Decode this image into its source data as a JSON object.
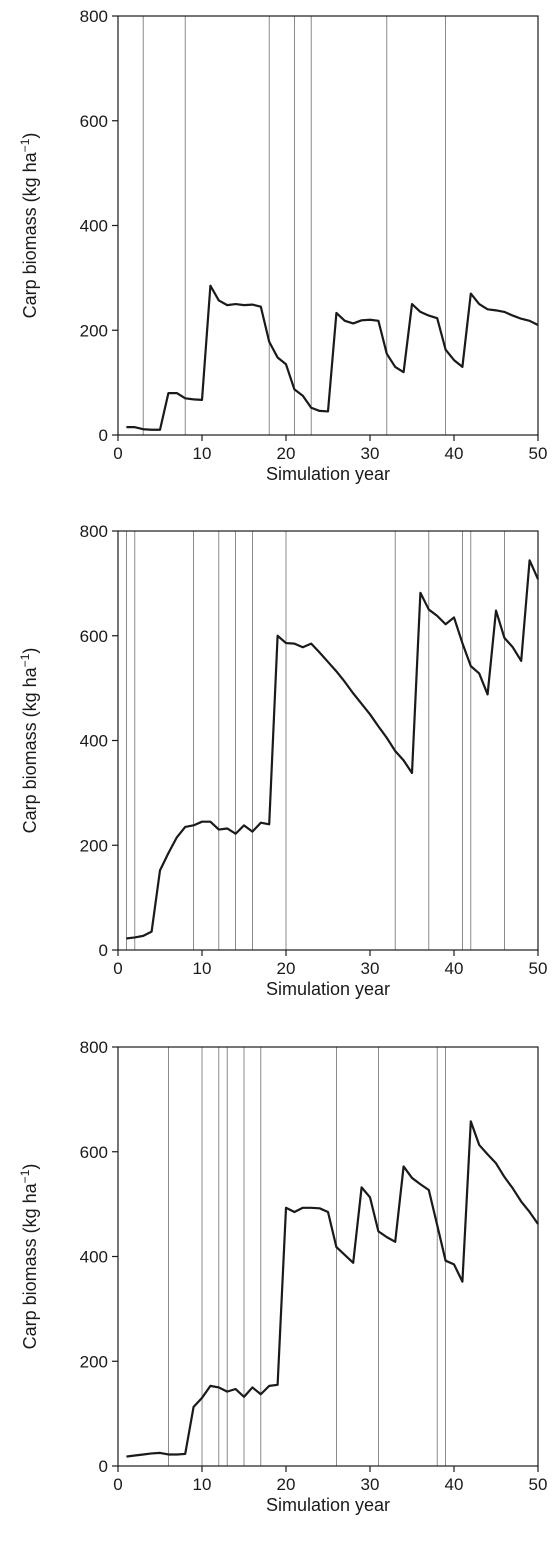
{
  "chart_data": [
    {
      "type": "line",
      "xlabel": "Simulation year",
      "ylabel": "Carp biomass (kg ha",
      "ylabel_unit_sup": "−1",
      "ylabel_close": ")",
      "xlim": [
        0,
        50
      ],
      "ylim": [
        0,
        800
      ],
      "xticks": [
        0,
        10,
        20,
        30,
        40,
        50
      ],
      "yticks": [
        0,
        200,
        400,
        600,
        800
      ],
      "event_years": [
        3,
        8,
        18,
        21,
        23,
        32,
        39
      ],
      "series": [
        {
          "x": [
            1,
            2,
            3,
            4,
            5,
            6,
            7,
            8,
            9,
            10,
            11,
            12,
            13,
            14,
            15,
            16,
            17,
            18,
            19,
            20,
            21,
            22,
            23,
            24,
            25,
            26,
            27,
            28,
            29,
            30,
            31,
            32,
            33,
            34,
            35,
            36,
            37,
            38,
            39,
            40,
            41,
            42,
            43,
            44,
            45,
            46,
            47,
            48,
            49,
            50
          ],
          "y": [
            15,
            15,
            11,
            10,
            10,
            80,
            80,
            70,
            68,
            67,
            285,
            257,
            248,
            250,
            248,
            249,
            245,
            178,
            148,
            135,
            87,
            75,
            52,
            46,
            45,
            233,
            218,
            213,
            219,
            220,
            218,
            155,
            130,
            120,
            250,
            235,
            228,
            223,
            163,
            143,
            130,
            270,
            250,
            240,
            238,
            235,
            228,
            222,
            218,
            210
          ]
        }
      ]
    },
    {
      "type": "line",
      "xlabel": "Simulation year",
      "ylabel": "Carp biomass (kg ha",
      "ylabel_unit_sup": "−1",
      "ylabel_close": ")",
      "xlim": [
        0,
        50
      ],
      "ylim": [
        0,
        800
      ],
      "xticks": [
        0,
        10,
        20,
        30,
        40,
        50
      ],
      "yticks": [
        0,
        200,
        400,
        600,
        800
      ],
      "event_years": [
        1,
        2,
        9,
        12,
        14,
        16,
        20,
        33,
        37,
        41,
        42,
        46
      ],
      "series": [
        {
          "x": [
            1,
            2,
            3,
            4,
            5,
            6,
            7,
            8,
            9,
            10,
            11,
            12,
            13,
            14,
            15,
            16,
            17,
            18,
            19,
            20,
            21,
            22,
            23,
            24,
            25,
            26,
            27,
            28,
            29,
            30,
            31,
            32,
            33,
            34,
            35,
            36,
            37,
            38,
            39,
            40,
            41,
            42,
            43,
            44,
            45,
            46,
            47,
            48,
            49,
            50
          ],
          "y": [
            22,
            24,
            27,
            35,
            152,
            185,
            215,
            235,
            238,
            245,
            245,
            230,
            232,
            222,
            238,
            226,
            243,
            240,
            600,
            586,
            585,
            578,
            585,
            568,
            550,
            532,
            512,
            490,
            470,
            450,
            427,
            405,
            380,
            362,
            338,
            682,
            650,
            638,
            622,
            635,
            586,
            542,
            528,
            488,
            648,
            596,
            578,
            552,
            744,
            708
          ]
        }
      ]
    },
    {
      "type": "line",
      "xlabel": "Simulation year",
      "ylabel": "Carp biomass (kg ha",
      "ylabel_unit_sup": "−1",
      "ylabel_close": ")",
      "xlim": [
        0,
        50
      ],
      "ylim": [
        0,
        800
      ],
      "xticks": [
        0,
        10,
        20,
        30,
        40,
        50
      ],
      "yticks": [
        0,
        200,
        400,
        600,
        800
      ],
      "event_years": [
        6,
        10,
        12,
        13,
        15,
        17,
        26,
        31,
        38,
        39
      ],
      "series": [
        {
          "x": [
            1,
            2,
            3,
            4,
            5,
            6,
            7,
            8,
            9,
            10,
            11,
            12,
            13,
            14,
            15,
            16,
            17,
            18,
            19,
            20,
            21,
            22,
            23,
            24,
            25,
            26,
            27,
            28,
            29,
            30,
            31,
            32,
            33,
            34,
            35,
            36,
            37,
            38,
            39,
            40,
            41,
            42,
            43,
            44,
            45,
            46,
            47,
            48,
            49,
            50
          ],
          "y": [
            18,
            20,
            22,
            24,
            25,
            22,
            22,
            23,
            113,
            130,
            153,
            150,
            142,
            147,
            132,
            150,
            137,
            153,
            155,
            493,
            485,
            493,
            493,
            492,
            485,
            418,
            403,
            388,
            532,
            513,
            448,
            437,
            428,
            572,
            550,
            538,
            527,
            460,
            392,
            385,
            352,
            658,
            613,
            595,
            578,
            552,
            530,
            505,
            485,
            462
          ]
        }
      ]
    }
  ]
}
